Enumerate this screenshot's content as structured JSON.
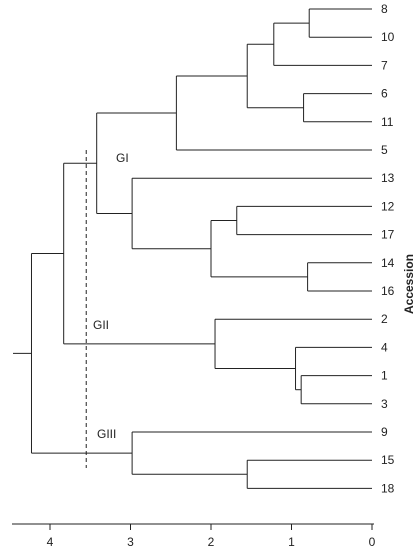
{
  "figure": {
    "axis_title": "Accession",
    "x_ticks": [
      "4",
      "3",
      "2",
      "1",
      "0"
    ],
    "cut_height": 3.55
  },
  "leaves": [
    "8",
    "10",
    "7",
    "6",
    "11",
    "5",
    "13",
    "12",
    "17",
    "14",
    "16",
    "2",
    "4",
    "1",
    "3",
    "9",
    "15",
    "18"
  ],
  "groups": [
    {
      "label": "GI"
    },
    {
      "label": "GII"
    },
    {
      "label": "GIII"
    }
  ],
  "merges": [
    {
      "height": 0.78,
      "children": [
        "L:8",
        "L:10"
      ]
    },
    {
      "height": 1.22,
      "children": [
        "N:0",
        "L:7"
      ]
    },
    {
      "height": 0.85,
      "children": [
        "L:6",
        "L:11"
      ]
    },
    {
      "height": 1.55,
      "children": [
        "N:1",
        "N:2"
      ]
    },
    {
      "height": 2.43,
      "children": [
        "N:3",
        "L:5"
      ]
    },
    {
      "height": 1.68,
      "children": [
        "L:12",
        "L:17"
      ]
    },
    {
      "height": 0.8,
      "children": [
        "L:14",
        "L:16"
      ]
    },
    {
      "height": 2.0,
      "children": [
        "N:5",
        "N:6"
      ]
    },
    {
      "height": 2.98,
      "children": [
        "L:13",
        "N:7"
      ]
    },
    {
      "height": 3.42,
      "children": [
        "N:4",
        "N:8"
      ]
    },
    {
      "height": 0.88,
      "children": [
        "L:1",
        "L:3"
      ]
    },
    {
      "height": 0.95,
      "children": [
        "L:4",
        "N:10"
      ]
    },
    {
      "height": 1.95,
      "children": [
        "L:2",
        "N:11"
      ]
    },
    {
      "height": 3.83,
      "children": [
        "N:9",
        "N:12"
      ]
    },
    {
      "height": 1.55,
      "children": [
        "L:15",
        "L:18"
      ]
    },
    {
      "height": 2.98,
      "children": [
        "L:9",
        "N:14"
      ]
    },
    {
      "height": 4.23,
      "children": [
        "N:13",
        "N:15"
      ]
    }
  ],
  "chart_data": {
    "type": "dendrogram",
    "x_axis": {
      "ticks": [
        4,
        3,
        2,
        1,
        0
      ],
      "reversed": true,
      "range": [
        4.45,
        0
      ]
    },
    "y_axis_label": "Accession",
    "leaf_order": [
      "8",
      "10",
      "7",
      "6",
      "11",
      "5",
      "13",
      "12",
      "17",
      "14",
      "16",
      "2",
      "4",
      "1",
      "3",
      "9",
      "15",
      "18"
    ],
    "cut_height": 3.55,
    "groups": [
      {
        "label": "GI",
        "members": [
          "8",
          "10",
          "7",
          "6",
          "11",
          "5",
          "13",
          "12",
          "17",
          "14",
          "16"
        ]
      },
      {
        "label": "GII",
        "members": [
          "2",
          "4",
          "1",
          "3"
        ]
      },
      {
        "label": "GIII",
        "members": [
          "9",
          "15",
          "18"
        ]
      }
    ]
  }
}
